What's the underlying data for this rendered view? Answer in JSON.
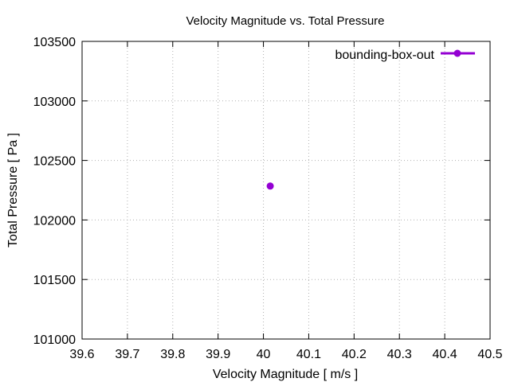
{
  "chart_data": {
    "type": "scatter",
    "title": "Velocity Magnitude vs. Total Pressure",
    "xlabel": "Velocity Magnitude [ m/s ]",
    "ylabel": "Total Pressure [ Pa ]",
    "xlim": [
      39.6,
      40.5
    ],
    "ylim": [
      101000,
      103500
    ],
    "xticks": [
      "39.6",
      "39.7",
      "39.8",
      "39.9",
      "40",
      "40.1",
      "40.2",
      "40.3",
      "40.4",
      "40.5"
    ],
    "yticks": [
      "101000",
      "101500",
      "102000",
      "102500",
      "103000",
      "103500"
    ],
    "grid": true,
    "legend_position": "top-right",
    "series": [
      {
        "name": "bounding-box-out",
        "color": "#9400d3",
        "points": [
          {
            "x": 40.015,
            "y": 102285
          }
        ]
      }
    ]
  }
}
